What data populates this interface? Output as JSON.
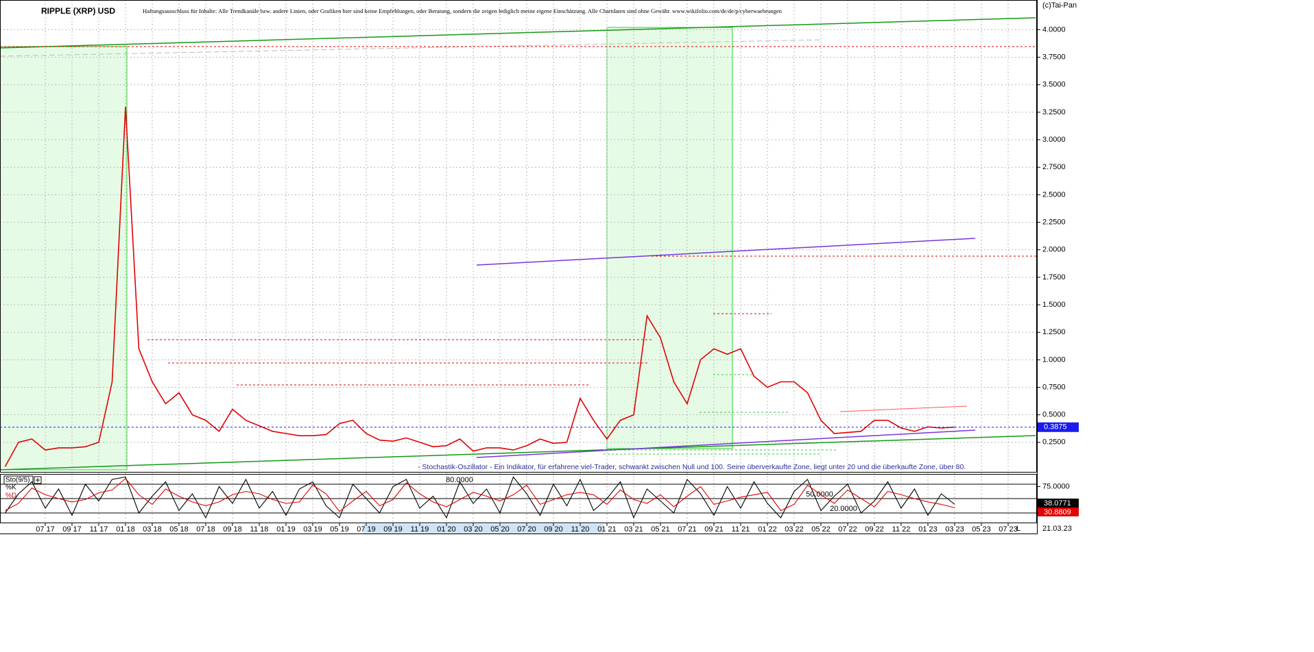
{
  "chart_data": [
    {
      "type": "line",
      "title": "RIPPLE (XRP) USD",
      "disclaimer": "Haftungsausschluss für Inhalte: Alle Trendkanäle bzw. andere Linien, oder Grafiken hier sind keine Empfehlungen, oder Beratung, sondern die zeigen lediglich meine eigene Einschätzung. Alle Chartdaten sind ohne Gewähr. www.wikifolio.com/de/de/p/cyberwaehrungen",
      "copyright": "(c)Tai-Pan",
      "annotation": "- Stochastik-Oszillator - Ein Indikator, für erfahrene viel-Trader, schwankt zwischen Null und 100. Seine überverkaufte Zone, liegt unter 20 und die überkaufte Zone, über 80.",
      "date": "21.03.23",
      "scale_mode": "L",
      "categories": [
        null,
        null,
        null,
        "07 17",
        null,
        "09 17",
        null,
        "11 17",
        null,
        "01 18",
        null,
        "03 18",
        null,
        "05 18",
        null,
        "07 18",
        null,
        "09 18",
        null,
        "11 18",
        null,
        "01 19",
        null,
        "03 19",
        null,
        "05 19",
        null,
        "07 19",
        null,
        "09 19",
        null,
        "11 19",
        null,
        "01 20",
        null,
        "03 20",
        null,
        "05 20",
        null,
        "07 20",
        null,
        "09 20",
        null,
        "11 20",
        null,
        "01 21",
        null,
        "03 21",
        null,
        "05 21",
        null,
        "07 21",
        null,
        "09 21",
        null,
        "11 21",
        null,
        "01 22",
        null,
        "03 22",
        null,
        "05 22",
        null,
        "07 22",
        null,
        "09 22",
        null,
        "11 22",
        null,
        "01 23",
        null,
        "03 23",
        null,
        "05 23",
        null,
        "07 23"
      ],
      "series": [
        {
          "name": "XRP",
          "color": "#e00000",
          "values": [
            0.03,
            0.25,
            0.28,
            0.18,
            0.2,
            0.2,
            0.21,
            0.25,
            0.8,
            3.3,
            1.1,
            0.8,
            0.6,
            0.7,
            0.5,
            0.45,
            0.35,
            0.55,
            0.45,
            0.4,
            0.35,
            0.33,
            0.31,
            0.31,
            0.32,
            0.42,
            0.45,
            0.33,
            0.27,
            0.26,
            0.29,
            0.25,
            0.21,
            0.22,
            0.28,
            0.17,
            0.2,
            0.2,
            0.18,
            0.22,
            0.28,
            0.24,
            0.25,
            0.65,
            0.45,
            0.28,
            0.45,
            0.5,
            1.4,
            1.2,
            0.8,
            0.6,
            1.0,
            1.1,
            1.05,
            1.1,
            0.85,
            0.75,
            0.8,
            0.8,
            0.7,
            0.45,
            0.33,
            0.34,
            0.35,
            0.45,
            0.45,
            0.38,
            0.35,
            0.39,
            0.38,
            0.3875,
            null,
            null,
            null,
            null
          ]
        }
      ],
      "last_value": 0.3875,
      "ylim": [
        0,
        4.27
      ],
      "yticks": [
        {
          "value": 0.25,
          "label": "0.2500"
        },
        {
          "value": 0.5,
          "label": "0.5000"
        },
        {
          "value": 0.75,
          "label": "0.7500"
        },
        {
          "value": 1.0,
          "label": "1.0000"
        },
        {
          "value": 1.25,
          "label": "1.2500"
        },
        {
          "value": 1.5,
          "label": "1.5000"
        },
        {
          "value": 1.75,
          "label": "1.7500"
        },
        {
          "value": 2.0,
          "label": "2.0000"
        },
        {
          "value": 2.25,
          "label": "2.2500"
        },
        {
          "value": 2.5,
          "label": "2.5000"
        },
        {
          "value": 2.75,
          "label": "2.7500"
        },
        {
          "value": 3.0,
          "label": "3.0000"
        },
        {
          "value": 3.25,
          "label": "3.2500"
        },
        {
          "value": 3.5,
          "label": "3.5000"
        },
        {
          "value": 3.75,
          "label": "3.7500"
        },
        {
          "value": 4.0,
          "label": "4.0000"
        }
      ],
      "grid": true
    },
    {
      "type": "line",
      "title": "Sto(9/5)",
      "series": [
        {
          "name": "%K",
          "color": "#000000",
          "values": [
            20,
            60,
            85,
            30,
            70,
            15,
            80,
            45,
            90,
            95,
            20,
            55,
            85,
            25,
            60,
            10,
            75,
            40,
            90,
            30,
            65,
            15,
            70,
            85,
            35,
            10,
            80,
            50,
            20,
            75,
            90,
            30,
            55,
            10,
            85,
            40,
            70,
            20,
            95,
            60,
            15,
            80,
            35,
            90,
            25,
            50,
            85,
            10,
            70,
            45,
            20,
            90,
            60,
            15,
            75,
            30,
            85,
            40,
            10,
            65,
            90,
            25,
            55,
            80,
            20,
            45,
            85,
            30,
            70,
            15,
            60,
            38.0771,
            null,
            null,
            null,
            null
          ]
        },
        {
          "name": "%D",
          "color": "#e00000",
          "values": [
            25,
            40,
            72,
            58,
            50,
            43,
            48,
            62,
            68,
            92,
            58,
            38,
            70,
            55,
            43,
            35,
            43,
            58,
            65,
            60,
            48,
            40,
            43,
            78,
            60,
            23,
            45,
            65,
            35,
            48,
            83,
            60,
            43,
            33,
            48,
            63,
            55,
            45,
            58,
            78,
            38,
            48,
            58,
            63,
            58,
            38,
            68,
            48,
            40,
            58,
            33,
            55,
            75,
            38,
            45,
            53,
            58,
            63,
            25,
            38,
            78,
            58,
            40,
            68,
            50,
            33,
            65,
            58,
            50,
            43,
            38,
            30.8809,
            null,
            null,
            null,
            null
          ]
        }
      ],
      "levels": [
        {
          "value": 80,
          "label": "80.0000"
        },
        {
          "value": 50,
          "label": "50.0000"
        },
        {
          "value": 20,
          "label": "20.0000"
        }
      ],
      "ylim": [
        0,
        100
      ],
      "yticks": [
        {
          "value": 75,
          "label": "75.0000"
        }
      ]
    }
  ]
}
